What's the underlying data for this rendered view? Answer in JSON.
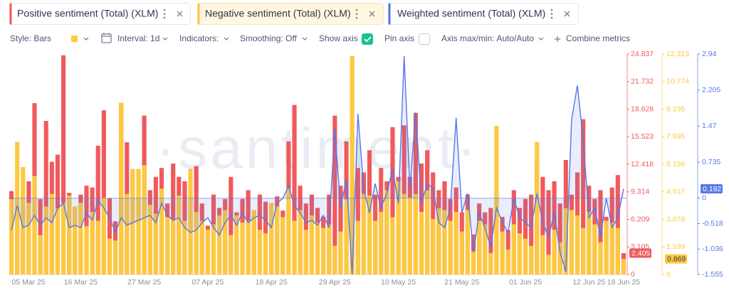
{
  "toolbar": {
    "style": "Style: Bars",
    "interval": "Interval: 1d",
    "indicators": "Indicators:",
    "smoothing": "Smoothing: Off",
    "show_axis": "Show axis",
    "show_axis_checked": true,
    "pin_axis": "Pin axis",
    "pin_axis_checked": false,
    "axis_range": "Axis max/min: Auto/Auto",
    "combine": "Combine metrics"
  },
  "chart_data": {
    "type": "bar",
    "watermark": "·santiment·",
    "x": [
      null,
      "05 Mar 25",
      null,
      null,
      null,
      null,
      null,
      null,
      null,
      null,
      null,
      null,
      "16 Mar 25",
      null,
      null,
      null,
      null,
      null,
      null,
      null,
      null,
      null,
      null,
      "27 Mar 25",
      null,
      null,
      null,
      null,
      null,
      null,
      null,
      null,
      null,
      null,
      "07 Apr 25",
      null,
      null,
      null,
      null,
      null,
      null,
      null,
      null,
      null,
      null,
      "18 Apr 25",
      null,
      null,
      null,
      null,
      null,
      null,
      null,
      null,
      null,
      null,
      "29 Apr 25",
      null,
      null,
      null,
      null,
      null,
      null,
      null,
      null,
      null,
      null,
      "10 May 25",
      null,
      null,
      null,
      null,
      null,
      null,
      null,
      null,
      null,
      null,
      "21 May 25",
      null,
      null,
      null,
      null,
      null,
      null,
      null,
      null,
      null,
      null,
      "01 Jun 25",
      null,
      null,
      null,
      null,
      null,
      null,
      null,
      null,
      null,
      null,
      "12 Jun 25",
      null,
      null,
      null,
      null,
      null,
      "18 Jun 25"
    ],
    "series": [
      {
        "name": "Positive sentiment (Total) (XLM)",
        "type": "bar",
        "axis": "y",
        "color": "#f05a5d",
        "values": [
          9.4,
          8.0,
          7.2,
          10.5,
          19.3,
          8.5,
          17.3,
          12.7,
          13.5,
          24.7,
          9.2,
          7.5,
          9.0,
          10.0,
          9.8,
          14.5,
          18.5,
          8.6,
          6.0,
          19.3,
          14.9,
          11.5,
          9.0,
          17.9,
          9.5,
          11.0,
          12.0,
          8.0,
          12.5,
          11.0,
          10.5,
          9.0,
          12.2,
          8.0,
          5.5,
          9.0,
          7.5,
          8.5,
          11.0,
          7.0,
          8.5,
          9.5,
          7.0,
          9.0,
          8.2,
          6.0,
          8.8,
          7.2,
          15.0,
          19.1,
          10.0,
          8.0,
          9.0,
          7.5,
          6.5,
          9.0,
          17.9,
          10.0,
          15.0,
          10.5,
          12.0,
          11.5,
          14.0,
          9.0,
          12.0,
          10.5,
          16.6,
          11.0,
          16.8,
          11.0,
          18.2,
          12.5,
          14.0,
          11.5,
          9.5,
          10.5,
          8.5,
          9.8,
          7.0,
          9.0,
          4.5,
          8.0,
          7.0,
          7.5,
          9.5,
          6.5,
          5.0,
          9.5,
          7.5,
          8.5,
          9.0,
          12.7,
          11.0,
          9.5,
          10.5,
          8.0,
          12.9,
          9.0,
          11.5,
          17.5,
          10.0,
          8.5,
          9.5,
          6.5,
          9.8,
          11.2,
          2.405
        ]
      },
      {
        "name": "Negative sentiment (Total) (XLM)",
        "type": "bar",
        "axis": "y2",
        "color": "#fcc940",
        "values": [
          4.2,
          7.4,
          6.0,
          4.0,
          5.5,
          2.2,
          3.8,
          4.5,
          3.7,
          4.0,
          4.4,
          3.8,
          4.0,
          2.7,
          3.5,
          3.0,
          4.3,
          2.0,
          1.9,
          9.6,
          4.5,
          5.9,
          5.9,
          6.1,
          3.9,
          3.4,
          4.8,
          3.2,
          3.1,
          4.4,
          3.0,
          5.9,
          3.5,
          3.0,
          2.5,
          2.8,
          3.3,
          3.6,
          2.2,
          3.3,
          2.9,
          3.0,
          3.6,
          2.5,
          2.3,
          4.0,
          3.8,
          3.2,
          4.8,
          3.0,
          3.6,
          2.5,
          3.3,
          2.9,
          2.6,
          2.8,
          1.6,
          2.4,
          4.2,
          12.2,
          3.0,
          4.5,
          4.4,
          3.0,
          3.5,
          4.7,
          3.2,
          5.2,
          4.5,
          4.3,
          4.5,
          3.5,
          4.7,
          3.1,
          3.7,
          3.6,
          3.0,
          3.5,
          2.4,
          3.6,
          1.3,
          3.0,
          2.8,
          1.2,
          8.3,
          2.4,
          1.4,
          2.8,
          2.3,
          2.0,
          1.6,
          7.4,
          2.2,
          1.1,
          2.5,
          1.8,
          3.7,
          3.6,
          3.3,
          2.6,
          3.5,
          2.8,
          1.8,
          3.0,
          2.9,
          2.6,
          0.869
        ]
      },
      {
        "name": "Weighted sentiment (Total) (XLM)",
        "type": "line",
        "axis": "y3",
        "color": "#5777e8",
        "values": [
          -0.65,
          -0.15,
          -0.6,
          -0.55,
          -0.35,
          -0.55,
          -0.4,
          -0.5,
          -0.2,
          -0.1,
          -0.6,
          -0.55,
          -0.6,
          -0.3,
          -0.45,
          -0.05,
          -0.2,
          -0.4,
          -0.7,
          -0.4,
          -0.55,
          -0.5,
          -0.45,
          -0.4,
          -0.35,
          -0.5,
          -0.1,
          -0.35,
          -0.45,
          -0.4,
          -0.6,
          -0.7,
          -0.65,
          -0.5,
          -0.4,
          -0.6,
          -0.75,
          -0.5,
          -0.35,
          -0.55,
          -0.3,
          -0.5,
          -0.4,
          -0.35,
          -0.45,
          -0.6,
          -0.1,
          0.0,
          0.25,
          -0.15,
          -0.3,
          -0.5,
          -0.45,
          -0.55,
          -0.35,
          -0.6,
          1.43,
          -0.2,
          0.4,
          -1.55,
          1.72,
          0.2,
          -0.3,
          0.3,
          -0.2,
          0.1,
          0.6,
          -0.1,
          2.9,
          0.2,
          1.75,
          -0.1,
          0.3,
          0.2,
          -0.5,
          -0.6,
          -0.2,
          1.64,
          -0.3,
          0.1,
          -1.1,
          -0.3,
          -0.6,
          -1.0,
          -0.2,
          -0.5,
          -0.7,
          0.0,
          -0.4,
          -0.5,
          -0.6,
          0.1,
          -0.5,
          -0.8,
          -0.3,
          -1.1,
          -1.5,
          1.6,
          2.3,
          1.2,
          -0.4,
          -0.2,
          -0.8,
          0.0,
          -0.6,
          -0.4,
          0.192
        ]
      }
    ],
    "ylim": [
      0,
      24.837
    ],
    "yticks": [
      0,
      3.105,
      6.209,
      9.314,
      12.418,
      15.523,
      18.628,
      21.732,
      24.837
    ],
    "y2lim": [
      0,
      12.313
    ],
    "y2ticks": [
      0,
      1.539,
      3.078,
      4.617,
      6.156,
      7.695,
      9.235,
      10.774,
      12.313
    ],
    "y3lim": [
      -1.555,
      2.94
    ],
    "y3ticks": [
      -1.555,
      -1.036,
      -0.518,
      0,
      0.735,
      1.47,
      2.205,
      2.94
    ]
  }
}
